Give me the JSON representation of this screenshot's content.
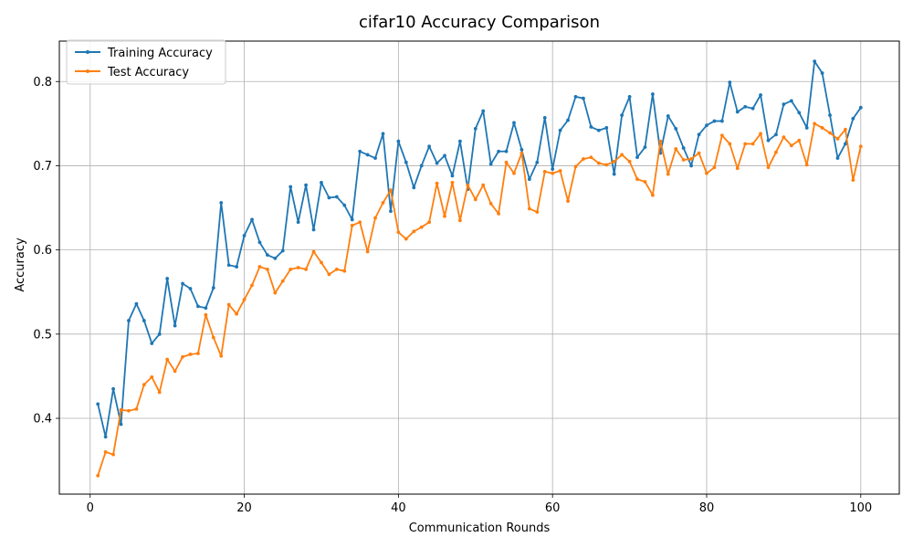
{
  "chart_data": {
    "type": "line",
    "title": "cifar10 Accuracy Comparison",
    "xlabel": "Communication Rounds",
    "ylabel": "Accuracy",
    "xlim": [
      -4,
      105
    ],
    "ylim": [
      0.31,
      0.848
    ],
    "xticks": [
      0,
      20,
      40,
      60,
      80,
      100
    ],
    "xtick_labels": [
      "0",
      "20",
      "40",
      "60",
      "80",
      "100"
    ],
    "yticks": [
      0.4,
      0.5,
      0.6,
      0.7,
      0.8
    ],
    "ytick_labels": [
      "0.4",
      "0.5",
      "0.6",
      "0.7",
      "0.8"
    ],
    "grid": true,
    "legend_position": "top-left",
    "x": [
      1,
      2,
      3,
      4,
      5,
      6,
      7,
      8,
      9,
      10,
      11,
      12,
      13,
      14,
      15,
      16,
      17,
      18,
      19,
      20,
      21,
      22,
      23,
      24,
      25,
      26,
      27,
      28,
      29,
      30,
      31,
      32,
      33,
      34,
      35,
      36,
      37,
      38,
      39,
      40,
      41,
      42,
      43,
      44,
      45,
      46,
      47,
      48,
      49,
      50,
      51,
      52,
      53,
      54,
      55,
      56,
      57,
      58,
      59,
      60,
      61,
      62,
      63,
      64,
      65,
      66,
      67,
      68,
      69,
      70,
      71,
      72,
      73,
      74,
      75,
      76,
      77,
      78,
      79,
      80,
      81,
      82,
      83,
      84,
      85,
      86,
      87,
      88,
      89,
      90,
      91,
      92,
      93,
      94,
      95,
      96,
      97,
      98,
      99,
      100
    ],
    "series": [
      {
        "name": "Training Accuracy",
        "color": "#1f77b4",
        "values": [
          0.417,
          0.378,
          0.435,
          0.393,
          0.516,
          0.536,
          0.516,
          0.489,
          0.5,
          0.566,
          0.51,
          0.56,
          0.554,
          0.533,
          0.531,
          0.555,
          0.656,
          0.582,
          0.58,
          0.617,
          0.636,
          0.609,
          0.594,
          0.59,
          0.599,
          0.675,
          0.633,
          0.677,
          0.624,
          0.68,
          0.662,
          0.663,
          0.653,
          0.636,
          0.717,
          0.713,
          0.709,
          0.738,
          0.646,
          0.729,
          0.704,
          0.674,
          0.7,
          0.723,
          0.703,
          0.712,
          0.688,
          0.729,
          0.672,
          0.744,
          0.765,
          0.702,
          0.717,
          0.717,
          0.751,
          0.719,
          0.684,
          0.704,
          0.757,
          0.696,
          0.742,
          0.754,
          0.782,
          0.78,
          0.746,
          0.742,
          0.745,
          0.69,
          0.76,
          0.782,
          0.71,
          0.722,
          0.785,
          0.715,
          0.759,
          0.744,
          0.721,
          0.7,
          0.737,
          0.748,
          0.753,
          0.753,
          0.799,
          0.764,
          0.77,
          0.768,
          0.784,
          0.73,
          0.737,
          0.773,
          0.777,
          0.763,
          0.745,
          0.824,
          0.81,
          0.76,
          0.709,
          0.726,
          0.756,
          0.769
        ]
      },
      {
        "name": "Test Accuracy",
        "color": "#ff7f0e",
        "values": [
          0.332,
          0.36,
          0.357,
          0.41,
          0.409,
          0.411,
          0.44,
          0.449,
          0.431,
          0.47,
          0.456,
          0.473,
          0.476,
          0.477,
          0.523,
          0.496,
          0.474,
          0.535,
          0.524,
          0.541,
          0.558,
          0.58,
          0.577,
          0.549,
          0.563,
          0.577,
          0.579,
          0.577,
          0.598,
          0.585,
          0.571,
          0.577,
          0.575,
          0.629,
          0.633,
          0.598,
          0.638,
          0.656,
          0.671,
          0.621,
          0.613,
          0.622,
          0.627,
          0.633,
          0.679,
          0.64,
          0.68,
          0.635,
          0.677,
          0.66,
          0.677,
          0.655,
          0.643,
          0.704,
          0.691,
          0.715,
          0.649,
          0.645,
          0.693,
          0.691,
          0.694,
          0.658,
          0.699,
          0.708,
          0.71,
          0.703,
          0.701,
          0.705,
          0.713,
          0.705,
          0.684,
          0.681,
          0.665,
          0.729,
          0.69,
          0.72,
          0.707,
          0.708,
          0.715,
          0.691,
          0.698,
          0.736,
          0.726,
          0.697,
          0.726,
          0.726,
          0.738,
          0.698,
          0.716,
          0.734,
          0.724,
          0.73,
          0.701,
          0.75,
          0.745,
          0.739,
          0.732,
          0.743,
          0.683,
          0.723
        ]
      }
    ]
  }
}
